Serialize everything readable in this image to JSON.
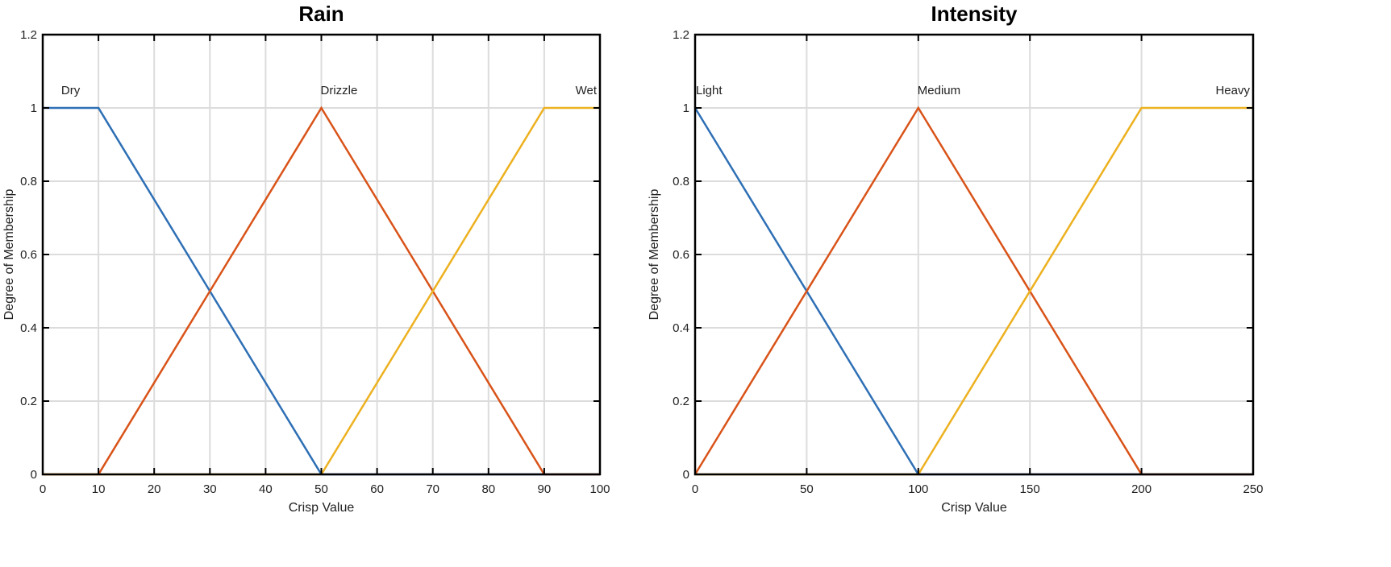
{
  "chart_data": [
    {
      "type": "line",
      "title": "Rain",
      "xlabel": "Crisp Value",
      "ylabel": "Degree of Membership",
      "xlim": [
        0,
        100
      ],
      "ylim": [
        0,
        1.2
      ],
      "xticks": [
        0,
        10,
        20,
        30,
        40,
        50,
        60,
        70,
        80,
        90,
        100
      ],
      "yticks": [
        0,
        0.2,
        0.4,
        0.6,
        0.8,
        1,
        1.2
      ],
      "grid": true,
      "series": [
        {
          "name": "Dry",
          "color": "#2E6FB5",
          "x": [
            0,
            10,
            50,
            100
          ],
          "y": [
            1,
            1,
            0,
            0
          ],
          "label_x": 5
        },
        {
          "name": "Drizzle",
          "color": "#D95319",
          "x": [
            0,
            10,
            50,
            90,
            100
          ],
          "y": [
            0,
            0,
            1,
            0,
            0
          ],
          "label_x": 50
        },
        {
          "name": "Wet",
          "color": "#EDB120",
          "x": [
            0,
            50,
            90,
            100
          ],
          "y": [
            0,
            0,
            1,
            1
          ],
          "label_x": 98
        }
      ]
    },
    {
      "type": "line",
      "title": "Intensity",
      "xlabel": "Crisp Value",
      "ylabel": "Degree of Membership",
      "xlim": [
        0,
        250
      ],
      "ylim": [
        0,
        1.2
      ],
      "xticks": [
        0,
        50,
        100,
        150,
        200,
        250
      ],
      "yticks": [
        0,
        0.2,
        0.4,
        0.6,
        0.8,
        1,
        1.2
      ],
      "grid": true,
      "series": [
        {
          "name": "Light",
          "color": "#2E6FB5",
          "x": [
            0,
            100,
            250
          ],
          "y": [
            1,
            0,
            0
          ],
          "label_x": 0
        },
        {
          "name": "Medium",
          "color": "#D95319",
          "x": [
            0,
            100,
            200,
            250
          ],
          "y": [
            0,
            1,
            0,
            0
          ],
          "label_x": 100
        },
        {
          "name": "Heavy",
          "color": "#EDB120",
          "x": [
            0,
            100,
            200,
            250
          ],
          "y": [
            0,
            0,
            1,
            1
          ],
          "label_x": 235
        }
      ]
    }
  ]
}
